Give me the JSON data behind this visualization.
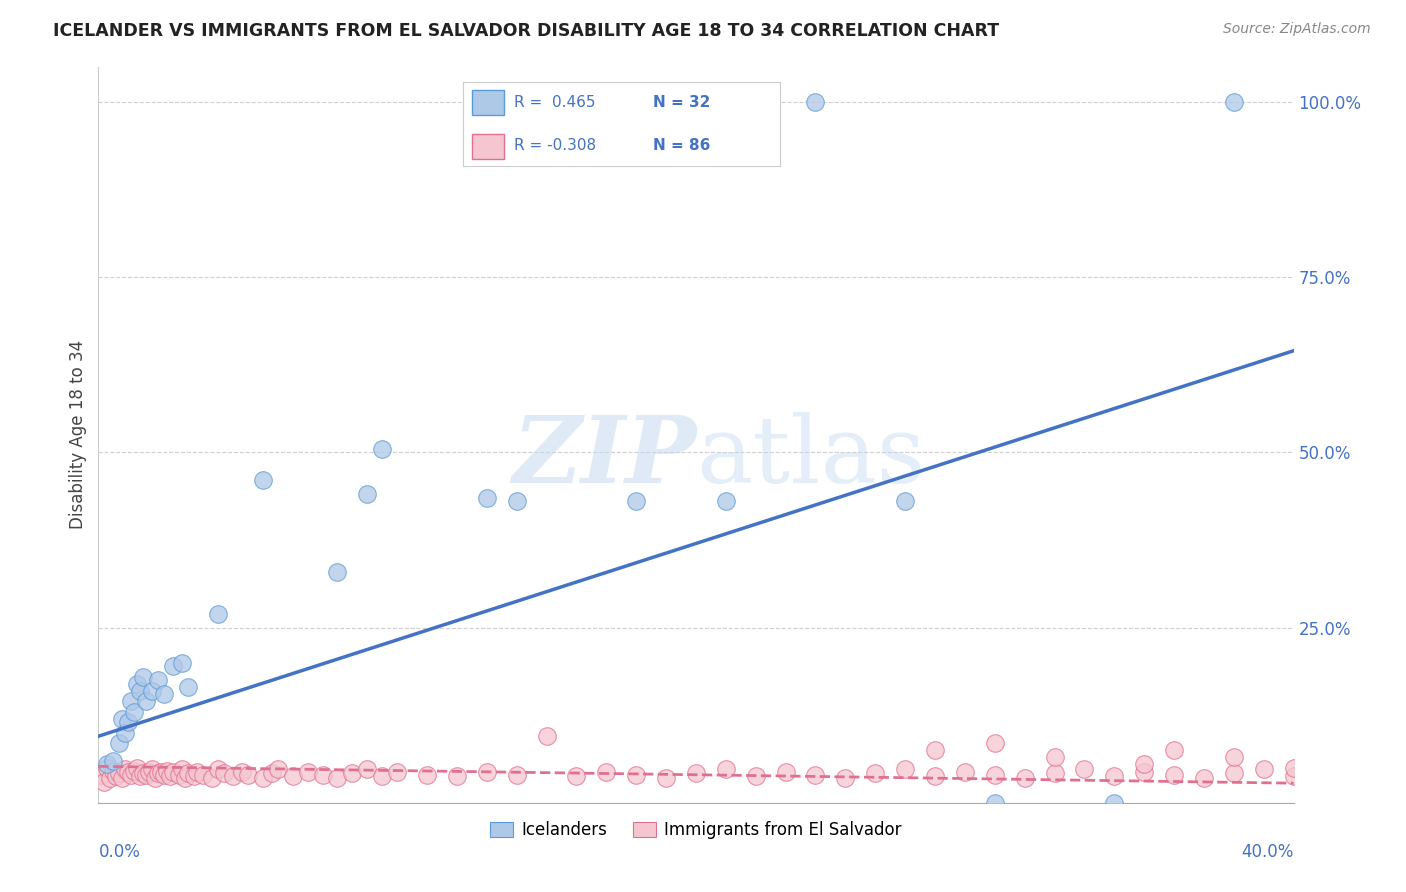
{
  "title": "ICELANDER VS IMMIGRANTS FROM EL SALVADOR DISABILITY AGE 18 TO 34 CORRELATION CHART",
  "source": "Source: ZipAtlas.com",
  "ylabel": "Disability Age 18 to 34",
  "background_color": "#ffffff",
  "watermark": "ZIPatlas",
  "legend1_label": "Icelanders",
  "legend2_label": "Immigrants from El Salvador",
  "r1": 0.465,
  "n1": 32,
  "r2": -0.308,
  "n2": 86,
  "blue_fill": "#aec8e8",
  "blue_edge": "#5b9bd5",
  "blue_line": "#4472c4",
  "pink_fill": "#f5c6d0",
  "pink_edge": "#e07090",
  "pink_line": "#e07090",
  "grid_color": "#d0d0d0",
  "right_axis_color": "#4472c4",
  "blue_scatter_x": [
    0.003,
    0.005,
    0.007,
    0.008,
    0.009,
    0.01,
    0.011,
    0.012,
    0.013,
    0.014,
    0.015,
    0.016,
    0.018,
    0.02,
    0.022,
    0.025,
    0.028,
    0.03,
    0.04,
    0.055,
    0.08,
    0.09,
    0.095,
    0.13,
    0.14,
    0.18,
    0.21,
    0.24,
    0.27,
    0.3,
    0.34,
    0.38
  ],
  "blue_scatter_y": [
    0.055,
    0.06,
    0.085,
    0.12,
    0.1,
    0.115,
    0.145,
    0.13,
    0.17,
    0.16,
    0.18,
    0.145,
    0.16,
    0.175,
    0.155,
    0.195,
    0.2,
    0.165,
    0.27,
    0.46,
    0.33,
    0.44,
    0.505,
    0.435,
    0.43,
    0.43,
    0.43,
    1.0,
    0.43,
    0.0,
    0.0,
    1.0
  ],
  "pink_scatter_x": [
    0.001,
    0.002,
    0.003,
    0.004,
    0.005,
    0.006,
    0.007,
    0.008,
    0.009,
    0.01,
    0.011,
    0.012,
    0.013,
    0.014,
    0.015,
    0.016,
    0.017,
    0.018,
    0.019,
    0.02,
    0.021,
    0.022,
    0.023,
    0.024,
    0.025,
    0.027,
    0.028,
    0.029,
    0.03,
    0.032,
    0.033,
    0.035,
    0.038,
    0.04,
    0.042,
    0.045,
    0.048,
    0.05,
    0.055,
    0.058,
    0.06,
    0.065,
    0.07,
    0.075,
    0.08,
    0.085,
    0.09,
    0.095,
    0.1,
    0.11,
    0.12,
    0.13,
    0.14,
    0.15,
    0.16,
    0.17,
    0.18,
    0.19,
    0.2,
    0.21,
    0.22,
    0.23,
    0.24,
    0.25,
    0.26,
    0.27,
    0.28,
    0.29,
    0.3,
    0.31,
    0.32,
    0.33,
    0.34,
    0.35,
    0.36,
    0.37,
    0.38,
    0.39,
    0.4,
    0.28,
    0.3,
    0.32,
    0.35,
    0.36,
    0.38,
    0.4
  ],
  "pink_scatter_y": [
    0.04,
    0.03,
    0.05,
    0.035,
    0.045,
    0.038,
    0.042,
    0.036,
    0.048,
    0.044,
    0.04,
    0.046,
    0.05,
    0.038,
    0.042,
    0.04,
    0.044,
    0.048,
    0.036,
    0.042,
    0.044,
    0.04,
    0.046,
    0.038,
    0.044,
    0.04,
    0.048,
    0.036,
    0.042,
    0.038,
    0.044,
    0.04,
    0.036,
    0.048,
    0.042,
    0.038,
    0.044,
    0.04,
    0.036,
    0.042,
    0.048,
    0.038,
    0.044,
    0.04,
    0.036,
    0.042,
    0.048,
    0.038,
    0.044,
    0.04,
    0.038,
    0.044,
    0.04,
    0.095,
    0.038,
    0.044,
    0.04,
    0.036,
    0.042,
    0.048,
    0.038,
    0.044,
    0.04,
    0.036,
    0.042,
    0.048,
    0.038,
    0.044,
    0.04,
    0.036,
    0.042,
    0.048,
    0.038,
    0.044,
    0.04,
    0.036,
    0.042,
    0.048,
    0.038,
    0.075,
    0.085,
    0.065,
    0.055,
    0.075,
    0.065,
    0.05
  ],
  "blue_line_x": [
    0.0,
    0.4
  ],
  "blue_line_y": [
    0.095,
    0.645
  ],
  "pink_line_x": [
    0.0,
    0.4
  ],
  "pink_line_y": [
    0.052,
    0.028
  ],
  "xlim": [
    0.0,
    0.4
  ],
  "ylim": [
    0.0,
    1.05
  ],
  "yticks": [
    0.0,
    0.25,
    0.5,
    0.75,
    1.0
  ],
  "ytick_labels": [
    "",
    "25.0%",
    "50.0%",
    "75.0%",
    "100.0%"
  ]
}
